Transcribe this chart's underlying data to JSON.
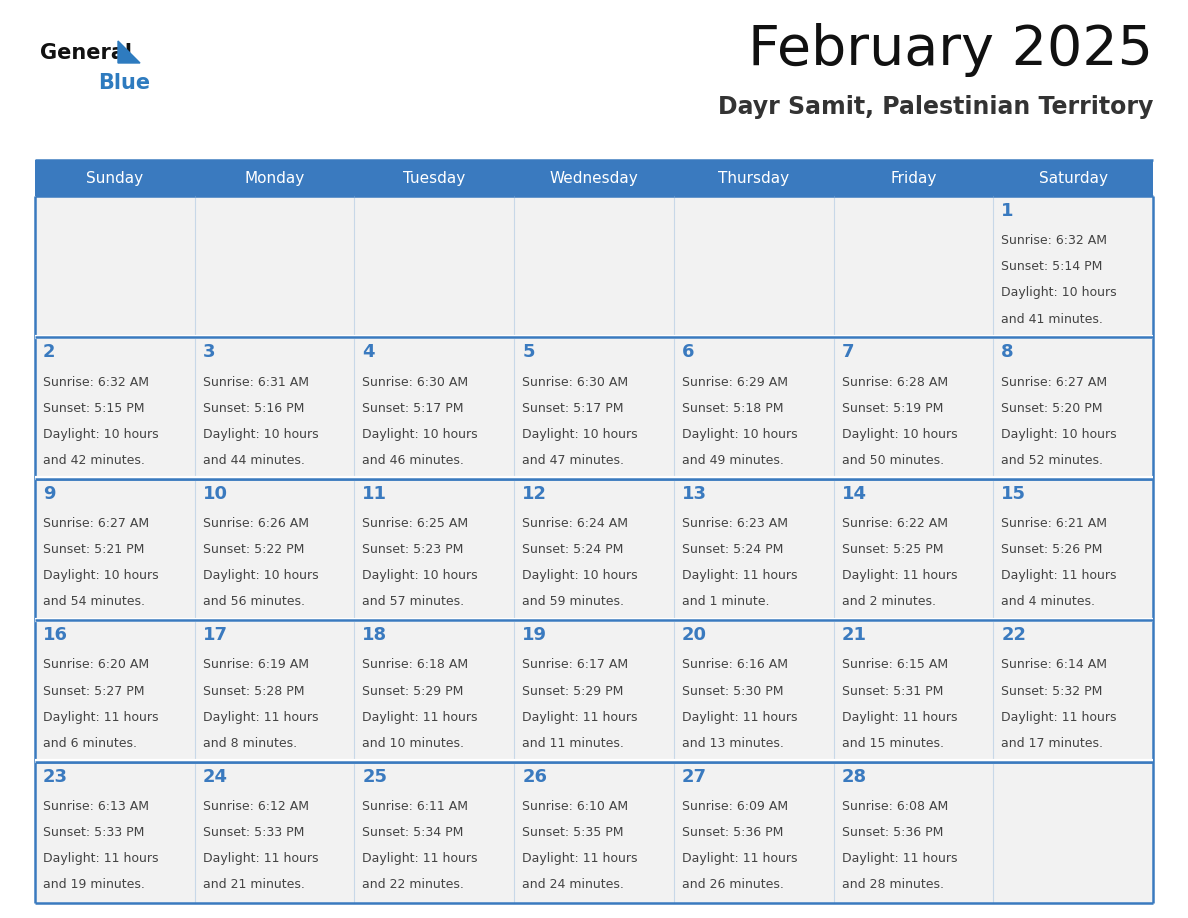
{
  "title": "February 2025",
  "subtitle": "Dayr Samit, Palestinian Territory",
  "days_of_week": [
    "Sunday",
    "Monday",
    "Tuesday",
    "Wednesday",
    "Thursday",
    "Friday",
    "Saturday"
  ],
  "header_bg": "#3a7abf",
  "header_text": "#ffffff",
  "cell_bg_light": "#f2f2f2",
  "cell_bg_white": "#ffffff",
  "cell_border": "#3a7abf",
  "day_number_color": "#3a7abf",
  "info_text_color": "#444444",
  "title_color": "#111111",
  "subtitle_color": "#333333",
  "logo_general_color": "#111111",
  "logo_blue_color": "#2e7bbf",
  "weeks": [
    [
      null,
      null,
      null,
      null,
      null,
      null,
      1
    ],
    [
      2,
      3,
      4,
      5,
      6,
      7,
      8
    ],
    [
      9,
      10,
      11,
      12,
      13,
      14,
      15
    ],
    [
      16,
      17,
      18,
      19,
      20,
      21,
      22
    ],
    [
      23,
      24,
      25,
      26,
      27,
      28,
      null
    ]
  ],
  "cell_data": {
    "1": {
      "sunrise": "6:32 AM",
      "sunset": "5:14 PM",
      "daylight_line1": "Daylight: 10 hours",
      "daylight_line2": "and 41 minutes."
    },
    "2": {
      "sunrise": "6:32 AM",
      "sunset": "5:15 PM",
      "daylight_line1": "Daylight: 10 hours",
      "daylight_line2": "and 42 minutes."
    },
    "3": {
      "sunrise": "6:31 AM",
      "sunset": "5:16 PM",
      "daylight_line1": "Daylight: 10 hours",
      "daylight_line2": "and 44 minutes."
    },
    "4": {
      "sunrise": "6:30 AM",
      "sunset": "5:17 PM",
      "daylight_line1": "Daylight: 10 hours",
      "daylight_line2": "and 46 minutes."
    },
    "5": {
      "sunrise": "6:30 AM",
      "sunset": "5:17 PM",
      "daylight_line1": "Daylight: 10 hours",
      "daylight_line2": "and 47 minutes."
    },
    "6": {
      "sunrise": "6:29 AM",
      "sunset": "5:18 PM",
      "daylight_line1": "Daylight: 10 hours",
      "daylight_line2": "and 49 minutes."
    },
    "7": {
      "sunrise": "6:28 AM",
      "sunset": "5:19 PM",
      "daylight_line1": "Daylight: 10 hours",
      "daylight_line2": "and 50 minutes."
    },
    "8": {
      "sunrise": "6:27 AM",
      "sunset": "5:20 PM",
      "daylight_line1": "Daylight: 10 hours",
      "daylight_line2": "and 52 minutes."
    },
    "9": {
      "sunrise": "6:27 AM",
      "sunset": "5:21 PM",
      "daylight_line1": "Daylight: 10 hours",
      "daylight_line2": "and 54 minutes."
    },
    "10": {
      "sunrise": "6:26 AM",
      "sunset": "5:22 PM",
      "daylight_line1": "Daylight: 10 hours",
      "daylight_line2": "and 56 minutes."
    },
    "11": {
      "sunrise": "6:25 AM",
      "sunset": "5:23 PM",
      "daylight_line1": "Daylight: 10 hours",
      "daylight_line2": "and 57 minutes."
    },
    "12": {
      "sunrise": "6:24 AM",
      "sunset": "5:24 PM",
      "daylight_line1": "Daylight: 10 hours",
      "daylight_line2": "and 59 minutes."
    },
    "13": {
      "sunrise": "6:23 AM",
      "sunset": "5:24 PM",
      "daylight_line1": "Daylight: 11 hours",
      "daylight_line2": "and 1 minute."
    },
    "14": {
      "sunrise": "6:22 AM",
      "sunset": "5:25 PM",
      "daylight_line1": "Daylight: 11 hours",
      "daylight_line2": "and 2 minutes."
    },
    "15": {
      "sunrise": "6:21 AM",
      "sunset": "5:26 PM",
      "daylight_line1": "Daylight: 11 hours",
      "daylight_line2": "and 4 minutes."
    },
    "16": {
      "sunrise": "6:20 AM",
      "sunset": "5:27 PM",
      "daylight_line1": "Daylight: 11 hours",
      "daylight_line2": "and 6 minutes."
    },
    "17": {
      "sunrise": "6:19 AM",
      "sunset": "5:28 PM",
      "daylight_line1": "Daylight: 11 hours",
      "daylight_line2": "and 8 minutes."
    },
    "18": {
      "sunrise": "6:18 AM",
      "sunset": "5:29 PM",
      "daylight_line1": "Daylight: 11 hours",
      "daylight_line2": "and 10 minutes."
    },
    "19": {
      "sunrise": "6:17 AM",
      "sunset": "5:29 PM",
      "daylight_line1": "Daylight: 11 hours",
      "daylight_line2": "and 11 minutes."
    },
    "20": {
      "sunrise": "6:16 AM",
      "sunset": "5:30 PM",
      "daylight_line1": "Daylight: 11 hours",
      "daylight_line2": "and 13 minutes."
    },
    "21": {
      "sunrise": "6:15 AM",
      "sunset": "5:31 PM",
      "daylight_line1": "Daylight: 11 hours",
      "daylight_line2": "and 15 minutes."
    },
    "22": {
      "sunrise": "6:14 AM",
      "sunset": "5:32 PM",
      "daylight_line1": "Daylight: 11 hours",
      "daylight_line2": "and 17 minutes."
    },
    "23": {
      "sunrise": "6:13 AM",
      "sunset": "5:33 PM",
      "daylight_line1": "Daylight: 11 hours",
      "daylight_line2": "and 19 minutes."
    },
    "24": {
      "sunrise": "6:12 AM",
      "sunset": "5:33 PM",
      "daylight_line1": "Daylight: 11 hours",
      "daylight_line2": "and 21 minutes."
    },
    "25": {
      "sunrise": "6:11 AM",
      "sunset": "5:34 PM",
      "daylight_line1": "Daylight: 11 hours",
      "daylight_line2": "and 22 minutes."
    },
    "26": {
      "sunrise": "6:10 AM",
      "sunset": "5:35 PM",
      "daylight_line1": "Daylight: 11 hours",
      "daylight_line2": "and 24 minutes."
    },
    "27": {
      "sunrise": "6:09 AM",
      "sunset": "5:36 PM",
      "daylight_line1": "Daylight: 11 hours",
      "daylight_line2": "and 26 minutes."
    },
    "28": {
      "sunrise": "6:08 AM",
      "sunset": "5:36 PM",
      "daylight_line1": "Daylight: 11 hours",
      "daylight_line2": "and 28 minutes."
    }
  }
}
